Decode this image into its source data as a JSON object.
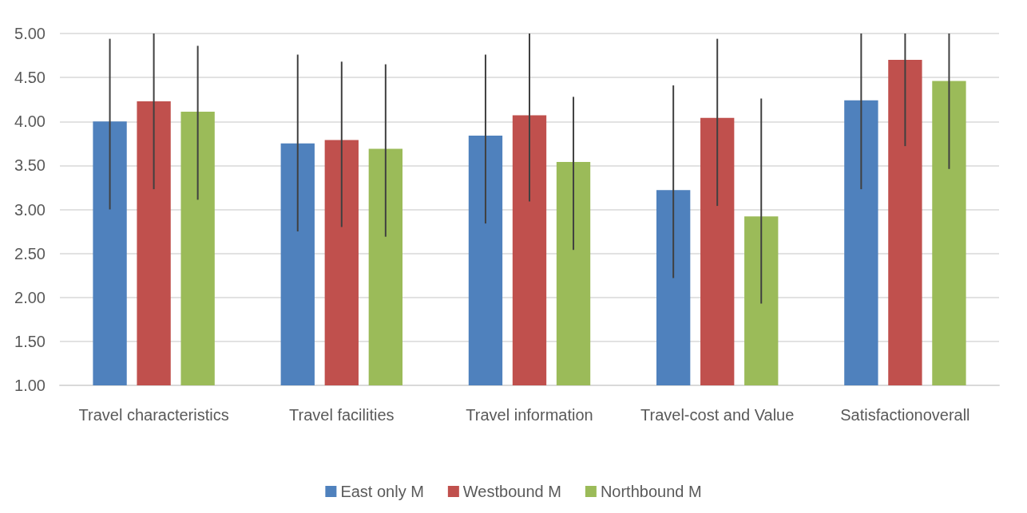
{
  "chart_data": {
    "type": "bar",
    "categories": [
      "Travel characteristics",
      "Travel facilities",
      "Travel information",
      "Travel-cost and Value",
      "Satisfactionoverall"
    ],
    "series": [
      {
        "name": "East only M",
        "color": "#4f81bd",
        "values": [
          4.0,
          3.75,
          3.84,
          3.22,
          4.24
        ],
        "errors": [
          [
            3.0,
            4.94
          ],
          [
            2.75,
            4.76
          ],
          [
            2.84,
            4.76
          ],
          [
            2.22,
            4.41
          ],
          [
            3.23,
            5.0
          ]
        ]
      },
      {
        "name": "Westbound M",
        "color": "#c0504d",
        "values": [
          4.23,
          3.79,
          4.07,
          4.04,
          4.7
        ],
        "errors": [
          [
            3.23,
            5.0
          ],
          [
            2.8,
            4.68
          ],
          [
            3.09,
            5.0
          ],
          [
            3.04,
            4.94
          ],
          [
            3.72,
            5.0
          ]
        ]
      },
      {
        "name": "Northbound M",
        "color": "#9bbb59",
        "values": [
          4.11,
          3.69,
          3.54,
          2.92,
          4.46
        ],
        "errors": [
          [
            3.11,
            4.86
          ],
          [
            2.69,
            4.65
          ],
          [
            2.54,
            4.28
          ],
          [
            1.93,
            4.26
          ],
          [
            3.46,
            5.0
          ]
        ]
      }
    ],
    "ylim": [
      1,
      5
    ],
    "yticks": [
      {
        "value": 1,
        "label": "1.00"
      },
      {
        "value": 1.5,
        "label": "1.50"
      },
      {
        "value": 2,
        "label": "2.00"
      },
      {
        "value": 2.5,
        "label": "2.50"
      },
      {
        "value": 3,
        "label": "3.00"
      },
      {
        "value": 3.5,
        "label": "3.50"
      },
      {
        "value": 4,
        "label": "4.00"
      },
      {
        "value": 4.5,
        "label": "4.50"
      },
      {
        "value": 5,
        "label": "5.00"
      }
    ],
    "grid": "y",
    "legend": "bottom"
  }
}
